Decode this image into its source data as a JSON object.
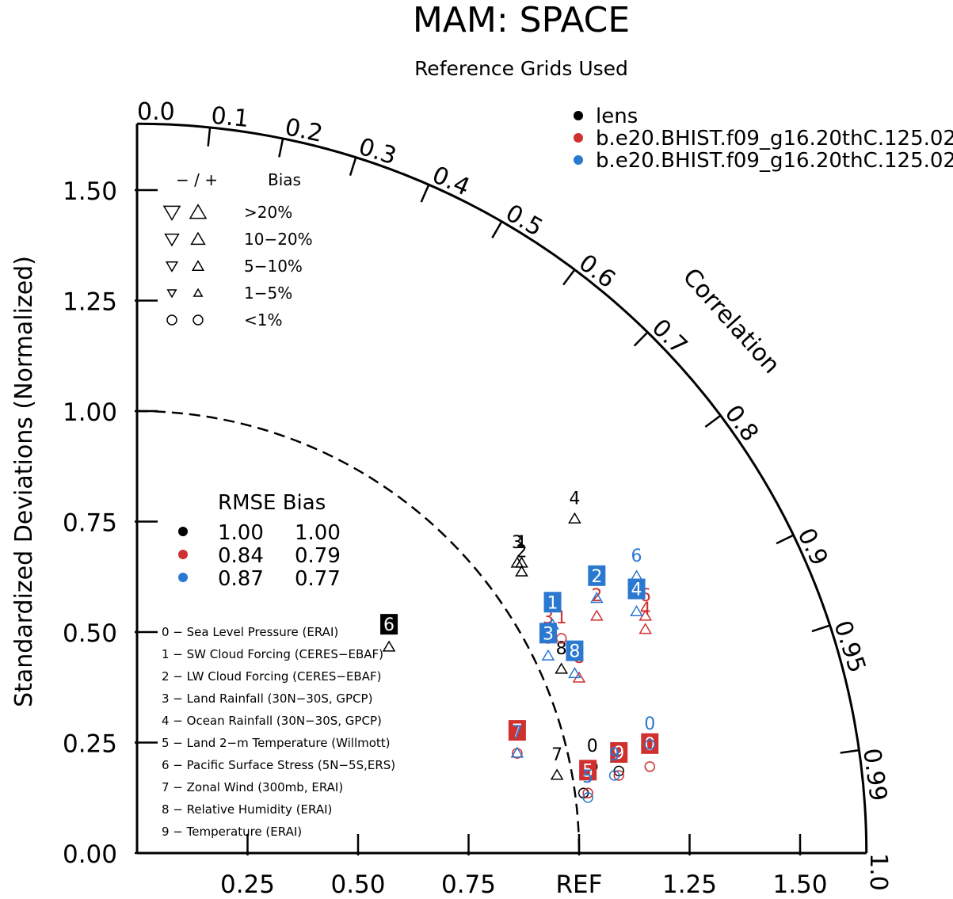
{
  "chart_data": {
    "type": "scatter",
    "title": "MAM: SPACE",
    "subtitle": "Reference Grids Used",
    "ylabel": "Standardized Deviations (Normalized)",
    "arc_label": "Correlation",
    "x_ticks": [
      "0.25",
      "0.50",
      "0.75",
      "REF",
      "1.25",
      "1.50"
    ],
    "x_tick_values": [
      0.25,
      0.5,
      0.75,
      1.0,
      1.25,
      1.5
    ],
    "y_ticks": [
      "0.00",
      "0.25",
      "0.50",
      "0.75",
      "1.00",
      "1.25",
      "1.50"
    ],
    "y_tick_values": [
      0,
      0.25,
      0.5,
      0.75,
      1.0,
      1.25,
      1.5
    ],
    "radius_max": 1.65,
    "correlation_ticks": [
      {
        "value": 0.0,
        "label": "0.0"
      },
      {
        "value": 0.1,
        "label": "0.1"
      },
      {
        "value": 0.2,
        "label": "0.2"
      },
      {
        "value": 0.3,
        "label": "0.3"
      },
      {
        "value": 0.4,
        "label": "0.4"
      },
      {
        "value": 0.5,
        "label": "0.5"
      },
      {
        "value": 0.6,
        "label": "0.6"
      },
      {
        "value": 0.7,
        "label": "0.7"
      },
      {
        "value": 0.8,
        "label": "0.8"
      },
      {
        "value": 0.9,
        "label": "0.9"
      },
      {
        "value": 0.95,
        "label": "0.95"
      },
      {
        "value": 0.99,
        "label": "0.99"
      },
      {
        "value": 1.0,
        "label": "1.0"
      }
    ],
    "series": [
      {
        "name": "lens",
        "color": "#000000",
        "rmse": "1.00",
        "bias": "1.00",
        "points": [
          {
            "id": "0",
            "x": 1.03,
            "y": 0.21,
            "marker": "circle"
          },
          {
            "id": "1",
            "x": 0.87,
            "y": 0.67,
            "marker": "triangle-up"
          },
          {
            "id": "2",
            "x": 0.87,
            "y": 0.65,
            "marker": "triangle-up"
          },
          {
            "id": "3",
            "x": 0.86,
            "y": 0.67,
            "marker": "triangle-up"
          },
          {
            "id": "4",
            "x": 0.99,
            "y": 0.77,
            "marker": "triangle-up"
          },
          {
            "id": "5",
            "x": 1.01,
            "y": 0.15,
            "marker": "circle"
          },
          {
            "id": "6",
            "x": 0.57,
            "y": 0.48,
            "marker": "triangle-up",
            "boxed": true
          },
          {
            "id": "7",
            "x": 0.95,
            "y": 0.19,
            "marker": "triangle-up"
          },
          {
            "id": "8",
            "x": 0.96,
            "y": 0.43,
            "marker": "triangle-up"
          },
          {
            "id": "9",
            "x": 1.09,
            "y": 0.2,
            "marker": "circle"
          }
        ]
      },
      {
        "name": "b.e20.BHIST.f09_g16.20thC.125.02",
        "color": "#d03030",
        "rmse": "0.84",
        "bias": "0.79",
        "points": [
          {
            "id": "0",
            "x": 1.16,
            "y": 0.21,
            "marker": "circle",
            "boxed": true
          },
          {
            "id": "1",
            "x": 0.96,
            "y": 0.5,
            "marker": "circle"
          },
          {
            "id": "2",
            "x": 1.04,
            "y": 0.55,
            "marker": "triangle-up"
          },
          {
            "id": "3",
            "x": 0.93,
            "y": 0.5,
            "marker": "circle"
          },
          {
            "id": "4",
            "x": 1.15,
            "y": 0.52,
            "marker": "triangle-up"
          },
          {
            "id": "5",
            "x": 1.02,
            "y": 0.15,
            "marker": "circle",
            "boxed": true
          },
          {
            "id": "6",
            "x": 1.15,
            "y": 0.55,
            "marker": "triangle-up"
          },
          {
            "id": "7",
            "x": 0.86,
            "y": 0.24,
            "marker": "circle",
            "boxed": true
          },
          {
            "id": "8",
            "x": 1.0,
            "y": 0.41,
            "marker": "triangle-up"
          },
          {
            "id": "9",
            "x": 1.09,
            "y": 0.19,
            "marker": "circle",
            "boxed": true
          }
        ]
      },
      {
        "name": "b.e20.BHIST.f09_g16.20thC.125.02",
        "color": "#2a78d0",
        "rmse": "0.87",
        "bias": "0.77",
        "points": [
          {
            "id": "0",
            "x": 1.16,
            "y": 0.26,
            "marker": "circle"
          },
          {
            "id": "1",
            "x": 0.94,
            "y": 0.53,
            "marker": "triangle-up",
            "boxed": true
          },
          {
            "id": "2",
            "x": 1.04,
            "y": 0.59,
            "marker": "triangle-up",
            "boxed": true
          },
          {
            "id": "3",
            "x": 0.93,
            "y": 0.46,
            "marker": "triangle-up",
            "boxed": true
          },
          {
            "id": "4",
            "x": 1.13,
            "y": 0.56,
            "marker": "triangle-up",
            "boxed": true
          },
          {
            "id": "5",
            "x": 1.02,
            "y": 0.14,
            "marker": "circle"
          },
          {
            "id": "6",
            "x": 1.13,
            "y": 0.64,
            "marker": "triangle-up"
          },
          {
            "id": "7",
            "x": 0.86,
            "y": 0.24,
            "marker": "triangle-up"
          },
          {
            "id": "8",
            "x": 0.99,
            "y": 0.42,
            "marker": "triangle-up",
            "boxed": true
          },
          {
            "id": "9",
            "x": 1.08,
            "y": 0.19,
            "marker": "circle"
          }
        ]
      }
    ],
    "bias_legend": {
      "header_symbols": "−  /  +",
      "header_label": "Bias",
      "rows": [
        {
          "label": ">20%",
          "size": 5
        },
        {
          "label": "10−20%",
          "size": 4
        },
        {
          "label": "5−10%",
          "size": 3
        },
        {
          "label": "1−5%",
          "size": 2
        },
        {
          "label": "<1%",
          "size": 1
        }
      ]
    },
    "rmse_legend": {
      "header": "RMSE Bias"
    },
    "variables": [
      "0 − Sea Level Pressure (ERAI)",
      "1 − SW Cloud Forcing (CERES−EBAF)",
      "2 − LW Cloud Forcing (CERES−EBAF)",
      "3 − Land Rainfall (30N−30S, GPCP)",
      "4 − Ocean Rainfall (30N−30S, GPCP)",
      "5 − Land 2−m Temperature (Willmott)",
      "6 − Pacific Surface Stress (5N−5S,ERS)",
      "7 − Zonal Wind (300mb, ERAI)",
      "8 − Relative Humidity (ERAI)",
      "9 − Temperature (ERAI)"
    ]
  }
}
